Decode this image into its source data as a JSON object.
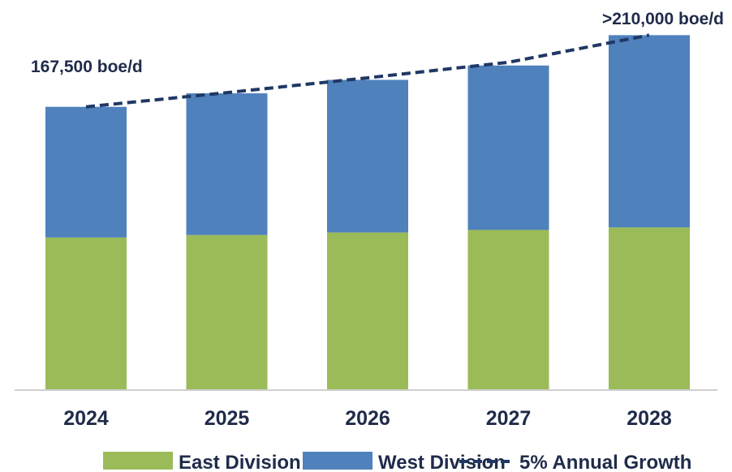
{
  "chart_data": {
    "type": "bar",
    "stacked": true,
    "categories": [
      "2024",
      "2025",
      "2026",
      "2027",
      "2028"
    ],
    "series": [
      {
        "name": "East Division",
        "color": "#9bbb59",
        "values": [
          90000,
          91500,
          93000,
          94500,
          96000
        ]
      },
      {
        "name": "West Division",
        "color": "#4f81bd",
        "values": [
          77500,
          84000,
          90500,
          97500,
          114000
        ]
      }
    ],
    "growth_line": {
      "name": "5% Annual Growth",
      "color": "#1f3864",
      "style": "dashed",
      "values": [
        167500,
        175900,
        184700,
        193900,
        210000
      ]
    },
    "annotations": [
      {
        "text": "167,500 boe/d",
        "category": "2024"
      },
      {
        "text": ">210,000 boe/d",
        "category": "2028"
      }
    ],
    "ylim": [
      0,
      227000
    ],
    "grid": false,
    "legend_position": "bottom"
  }
}
